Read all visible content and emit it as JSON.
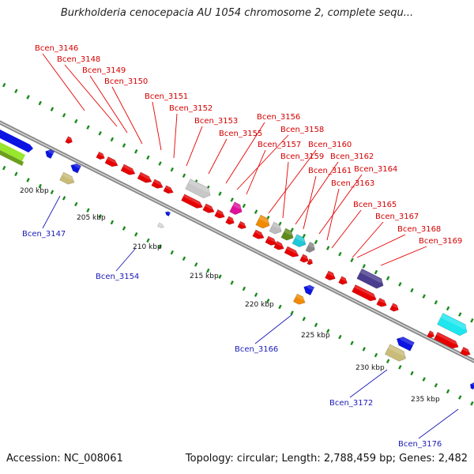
{
  "title": "Burkholderia cenocepacia AU 1054 chromosome 2, complete sequ...",
  "footer": {
    "accession": "Accession: NC_008061",
    "stats": "Topology: circular; Length: 2,788,459 bp; Genes: 2,482"
  },
  "colors": {
    "forward_strand": "#e60000",
    "reverse_strand": "#0b14e0",
    "backbone": "#8a8a8a",
    "tick_dots": "#1a8a1a",
    "top_label": "#d40000",
    "bottom_label": "#1a1ab8"
  },
  "scale_ticks": [
    "200 kbp",
    "205 kbp",
    "210 kbp",
    "215 kbp",
    "220 kbp",
    "225 kbp",
    "230 kbp",
    "235 kbp"
  ],
  "gene_labels_top": [
    "Bcen_3146",
    "Bcen_3148",
    "Bcen_3149",
    "Bcen_3150",
    "Bcen_3151",
    "Bcen_3152",
    "Bcen_3153",
    "Bcen_3155",
    "Bcen_3156",
    "Bcen_3158",
    "Bcen_3157",
    "Bcen_3160",
    "Bcen_3159",
    "Bcen_3162",
    "Bcen_3161",
    "Bcen_3164",
    "Bcen_3163",
    "Bcen_3165",
    "Bcen_3167",
    "Bcen_3168",
    "Bcen_3169"
  ],
  "gene_labels_bottom": [
    "Bcen_3147",
    "Bcen_3154",
    "Bcen_3166",
    "Bcen_3172",
    "Bcen_3176"
  ]
}
